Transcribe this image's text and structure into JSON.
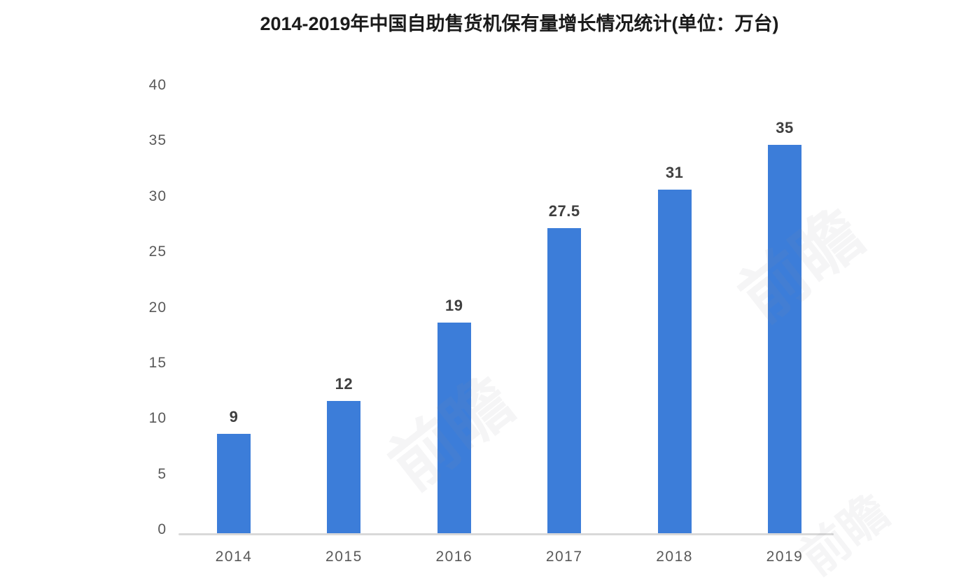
{
  "page": {
    "background": "#ffffff"
  },
  "chart_data": {
    "type": "bar",
    "title": "2014-2019年中国自助售货机保有量增长情况统计(单位：万台)",
    "unit": "万台",
    "categories": [
      "2014",
      "2015",
      "2016",
      "2017",
      "2018",
      "2019"
    ],
    "values": [
      9,
      12,
      19,
      27.5,
      31,
      35
    ],
    "value_labels": [
      "9",
      "12",
      "19",
      "27.5",
      "31",
      "35"
    ],
    "xlabel": "",
    "ylabel": "",
    "ylim": [
      0,
      40
    ],
    "ytick_step": 5,
    "ytick_labels": [
      "0",
      "5",
      "10",
      "15",
      "20",
      "25",
      "30",
      "35",
      "40"
    ],
    "grid": false,
    "legend_position": "none",
    "colors": {
      "bar": "#3c7dd9",
      "title_text": "#1b1b1b",
      "axis_text": "#595959",
      "value_text": "#3f3f3f",
      "baseline": "#d9d9d9",
      "watermark": "rgba(140,145,160,0.09)"
    }
  },
  "watermark": {
    "text": "前瞻"
  }
}
